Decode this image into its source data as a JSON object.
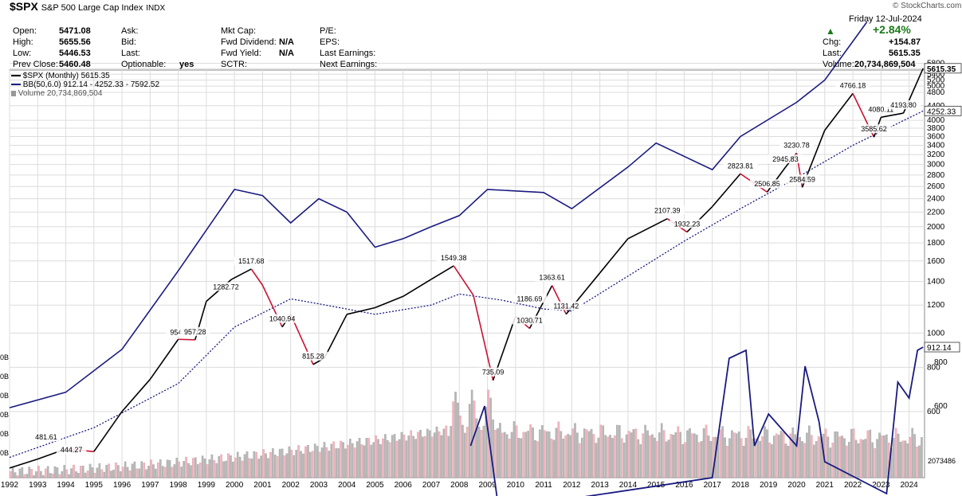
{
  "header": {
    "symbol": "$SPX",
    "name": "S&P 500 Large Cap Index",
    "exchange": "INDX",
    "brand": "© StockCharts.com",
    "date": "Friday   12-Jul-2024",
    "open_label": "Open:",
    "open": "5471.08",
    "high_label": "High:",
    "high": "5655.56",
    "low_label": "Low:",
    "low": "5446.53",
    "prev_label": "Prev Close:",
    "prev": "5460.48",
    "ask_label": "Ask:",
    "bid_label": "Bid:",
    "last2_label": "Last:",
    "optionable_label": "Optionable:",
    "optionable": "yes",
    "mktcap_label": "Mkt Cap:",
    "fwddiv_label": "Fwd Dividend:",
    "fwddiv": "N/A",
    "fwdyield_label": "Fwd Yield:",
    "fwdyield": "N/A",
    "sctr_label": "SCTR:",
    "pe_label": "P/E:",
    "eps_label": "EPS:",
    "lastearn_label": "Last Earnings:",
    "nextearn_label": "Next Earnings:",
    "pct": "+2.84%",
    "chg_label": "Chg:",
    "chg": "+154.87",
    "last_label": "Last:",
    "last": "5615.35",
    "vol_label": "Volume:",
    "vol": "20,734,869,504"
  },
  "legend": {
    "price": "$SPX (Monthly) 5615.35",
    "bb": "BB(50,6.0) 912.14 - 4252.33 - 7592.52",
    "volume": "Volume 20,734,869,504"
  },
  "colors": {
    "up": "#000000",
    "down": "#cc1133",
    "bb": "#1a1a80",
    "volume_up": "#b8b8b8",
    "volume_down": "#f0b8c4",
    "grid": "#dcdcdc"
  },
  "chart_data": {
    "type": "line",
    "scale": "log",
    "x_ticks": [
      "1992",
      "1993",
      "1994",
      "1995",
      "1996",
      "1997",
      "1998",
      "1999",
      "2000",
      "2001",
      "2002",
      "2003",
      "2004",
      "2005",
      "2006",
      "2007",
      "2008",
      "2009",
      "2010",
      "2011",
      "2012",
      "2013",
      "2014",
      "2015",
      "2016",
      "2017",
      "2018",
      "2019",
      "2020",
      "2021",
      "2022",
      "2023",
      "2024"
    ],
    "y_ticks": [
      600,
      800,
      1000,
      1200,
      1400,
      1600,
      1800,
      2000,
      2200,
      2400,
      2600,
      2800,
      3000,
      3200,
      3400,
      3600,
      3800,
      4000,
      4400,
      4800,
      5000,
      5200,
      5400,
      5600,
      5800
    ],
    "price_series": [
      [
        1992,
        415
      ],
      [
        1993,
        440
      ],
      [
        1994,
        470
      ],
      [
        1995,
        462
      ],
      [
        1996,
        600
      ],
      [
        1997,
        740
      ],
      [
        1998,
        960
      ],
      [
        1998.6,
        957.28
      ],
      [
        1999,
        1230
      ],
      [
        1999.9,
        1420
      ],
      [
        2000.6,
        1517.68
      ],
      [
        2001,
        1366
      ],
      [
        2001.7,
        1040.94
      ],
      [
        2002,
        1130
      ],
      [
        2002.8,
        815.28
      ],
      [
        2003.2,
        850
      ],
      [
        2004,
        1130
      ],
      [
        2005,
        1180
      ],
      [
        2006,
        1270
      ],
      [
        2007,
        1420
      ],
      [
        2007.8,
        1549.38
      ],
      [
        2008.5,
        1280
      ],
      [
        2009.2,
        735.09
      ],
      [
        2010,
        1115
      ],
      [
        2010.5,
        1030.71
      ],
      [
        2011.3,
        1363.61
      ],
      [
        2011.8,
        1131.42
      ],
      [
        2013,
        1480
      ],
      [
        2014,
        1850
      ],
      [
        2015.4,
        2107.39
      ],
      [
        2016.1,
        1932.23
      ],
      [
        2017,
        2280
      ],
      [
        2018,
        2823.81
      ],
      [
        2018.95,
        2506.85
      ],
      [
        2019.6,
        2945.83
      ],
      [
        2020,
        3230.78
      ],
      [
        2020.2,
        2584.59
      ],
      [
        2021,
        3750
      ],
      [
        2022,
        4766.18
      ],
      [
        2022.75,
        3585.62
      ],
      [
        2023,
        4080.11
      ],
      [
        2023.8,
        4193.8
      ],
      [
        2024.5,
        5615.35
      ]
    ],
    "bb_middle": [
      [
        1992,
        445
      ],
      [
        1995,
        540
      ],
      [
        1998,
        720
      ],
      [
        2000,
        1040
      ],
      [
        2002,
        1250
      ],
      [
        2003,
        1210
      ],
      [
        2005,
        1130
      ],
      [
        2007,
        1200
      ],
      [
        2008,
        1290
      ],
      [
        2009.5,
        1240
      ],
      [
        2011,
        1170
      ],
      [
        2012,
        1155
      ],
      [
        2014,
        1450
      ],
      [
        2016,
        1820
      ],
      [
        2018,
        2250
      ],
      [
        2020,
        2750
      ],
      [
        2022,
        3400
      ],
      [
        2024.5,
        4252.33
      ]
    ],
    "bb_upper": [
      [
        1992,
        615
      ],
      [
        1994,
        680
      ],
      [
        1996,
        900
      ],
      [
        1998,
        1500
      ],
      [
        2000,
        2550
      ],
      [
        2001,
        2450
      ],
      [
        2002,
        2050
      ],
      [
        2003,
        2400
      ],
      [
        2004,
        2200
      ],
      [
        2005,
        1750
      ],
      [
        2006,
        1850
      ],
      [
        2007,
        2000
      ],
      [
        2008,
        2150
      ],
      [
        2009,
        2550
      ],
      [
        2011,
        2500
      ],
      [
        2012,
        2250
      ],
      [
        2014,
        2950
      ],
      [
        2015,
        3450
      ],
      [
        2017,
        2900
      ],
      [
        2018,
        3600
      ],
      [
        2020,
        4500
      ],
      [
        2021,
        5200
      ],
      [
        2022.5,
        7592.52
      ]
    ],
    "annotations": [
      {
        "x": 1993.3,
        "y": 481.61,
        "label": "481.61"
      },
      {
        "x": 1994.2,
        "y": 444.27,
        "label": "444.27"
      },
      {
        "x": 1998.1,
        "y": 954.29,
        "label": "954.29"
      },
      {
        "x": 1998.6,
        "y": 957.28,
        "label": "957.28"
      },
      {
        "x": 1999.7,
        "y": 1282.72,
        "label": "1282.72"
      },
      {
        "x": 2000.6,
        "y": 1517.68,
        "label": "1517.68"
      },
      {
        "x": 2001.7,
        "y": 1040.94,
        "label": "1040.94"
      },
      {
        "x": 2002.8,
        "y": 815.28,
        "label": "815.28"
      },
      {
        "x": 2007.8,
        "y": 1549.38,
        "label": "1549.38"
      },
      {
        "x": 2009.2,
        "y": 735.09,
        "label": "735.09"
      },
      {
        "x": 2010.5,
        "y": 1186.69,
        "label": "1186.69"
      },
      {
        "x": 2010.5,
        "y": 1030.71,
        "label": "1030.71"
      },
      {
        "x": 2011.3,
        "y": 1363.61,
        "label": "1363.61"
      },
      {
        "x": 2011.8,
        "y": 1131.42,
        "label": "1131.42"
      },
      {
        "x": 2015.4,
        "y": 2107.39,
        "label": "2107.39"
      },
      {
        "x": 2016.1,
        "y": 1932.23,
        "label": "1932.23"
      },
      {
        "x": 2018,
        "y": 2823.81,
        "label": "2823.81"
      },
      {
        "x": 2018.95,
        "y": 2506.85,
        "label": "2506.85"
      },
      {
        "x": 2019.6,
        "y": 2945.83,
        "label": "2945.83"
      },
      {
        "x": 2020,
        "y": 3230.78,
        "label": "3230.78"
      },
      {
        "x": 2020.2,
        "y": 2584.59,
        "label": "2584.59"
      },
      {
        "x": 2022,
        "y": 4766.18,
        "label": "4766.18"
      },
      {
        "x": 2022.75,
        "y": 3585.62,
        "label": "3585.62"
      },
      {
        "x": 2023,
        "y": 4080.11,
        "label": "4080.11"
      },
      {
        "x": 2023.8,
        "y": 4193.8,
        "label": "4193.80"
      }
    ],
    "right_labels": [
      {
        "y": 5615.35,
        "label": "5615.35"
      },
      {
        "y": 4252.33,
        "label": "4252.33"
      }
    ],
    "volume_axis_labels": [
      "0B",
      "0B",
      "0B",
      "0B",
      "0B",
      "0B"
    ],
    "bandwidth_axis": {
      "ticks": [
        600,
        800
      ],
      "last": "912.14",
      "right_cut": "2073486"
    }
  }
}
